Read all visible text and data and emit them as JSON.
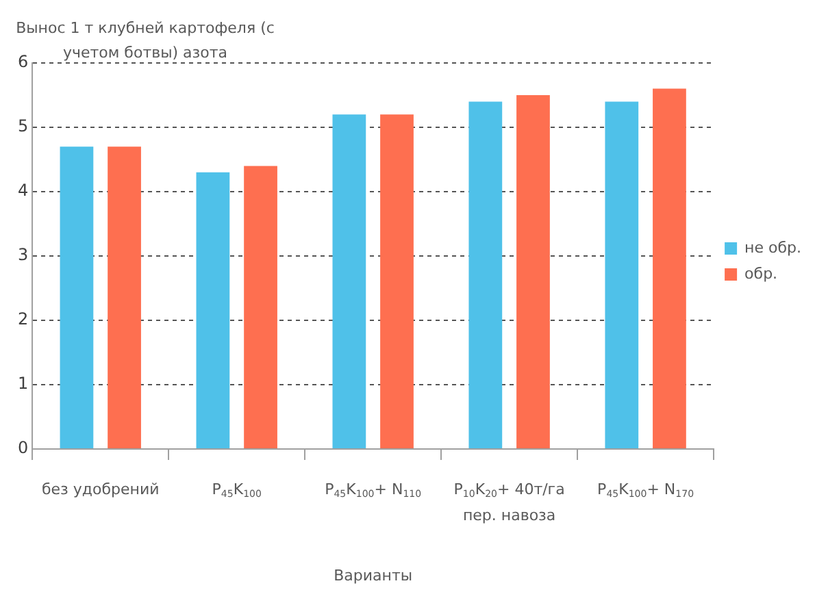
{
  "chart_data": {
    "type": "bar",
    "ylabel": "Вынос 1 т клубней картофеля (с учетом ботвы) азота",
    "xlabel": "Варианты",
    "categories": [
      "без удобрений",
      "P$_{45}$K$_{100}$",
      "P$_{45}$K$_{100}$+ N$_{110}$",
      "P$_{10}$K$_{20}$+ 40т/га пер. навоза",
      "P$_{45}$K$_{100}$+ N$_{170}$"
    ],
    "series": [
      {
        "name": "не обр.",
        "color": "#4fc1e9",
        "values": [
          4.7,
          4.3,
          5.2,
          5.4,
          5.4
        ]
      },
      {
        "name": "обр.",
        "color": "#fe6f50",
        "values": [
          4.7,
          4.4,
          5.2,
          5.5,
          5.6
        ]
      }
    ],
    "ylim": [
      0,
      6
    ],
    "yticks": [
      0,
      1,
      2,
      3,
      4,
      5,
      6
    ],
    "grid": "y",
    "legend": "right"
  }
}
